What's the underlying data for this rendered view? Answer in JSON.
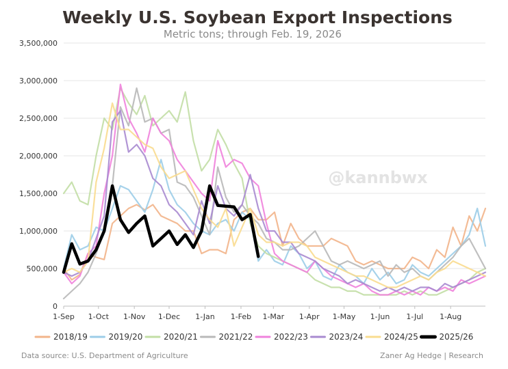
{
  "chart_data": {
    "type": "line",
    "title": "Weekly U.S. Soybean Export Inspections",
    "subtitle": "Metric tons; through Feb. 19, 2026",
    "xlabel": "",
    "ylabel": "",
    "x_tick_labels": [
      "1-Sep",
      "1-Oct",
      "1-Nov",
      "1-Dec",
      "1-Jan",
      "1-Feb",
      "1-Mar",
      "1-Apr",
      "1-May",
      "1-Jun",
      "1-Jul",
      "1-Aug"
    ],
    "y_tick_labels": [
      "0",
      "500,000",
      "1,000,000",
      "1,500,000",
      "2,000,000",
      "2,500,000",
      "3,000,000",
      "3,500,000"
    ],
    "ylim": [
      0,
      3500000
    ],
    "xlim_weeks": [
      0,
      52
    ],
    "grid": "horizontal",
    "legend_position": "bottom",
    "series": [
      {
        "name": "2018/19",
        "color": "#f2b48a",
        "width": 2.2,
        "values": [
          500,
          350,
          420,
          700,
          650,
          620,
          1100,
          1200,
          1300,
          1350,
          1280,
          1350,
          1200,
          1150,
          1100,
          1000,
          1000,
          700,
          750,
          750,
          700,
          1150,
          1250,
          1300,
          1150,
          1150,
          1250,
          800,
          1100,
          900,
          800,
          800,
          800,
          900,
          850,
          800,
          600,
          550,
          600,
          550,
          500,
          500,
          500,
          650,
          600,
          500,
          750,
          650,
          1050,
          800,
          1200,
          1000,
          1300
        ]
      },
      {
        "name": "2019/20",
        "color": "#9ccde8",
        "width": 2.2,
        "values": [
          500,
          950,
          750,
          800,
          1050,
          1000,
          1300,
          1600,
          1550,
          1400,
          1250,
          1550,
          1950,
          1550,
          1350,
          1250,
          1100,
          1000,
          950,
          1100,
          1150,
          1000,
          1250,
          1150,
          600,
          750,
          600,
          550,
          800,
          700,
          500,
          600,
          400,
          350,
          550,
          450,
          400,
          300,
          500,
          350,
          450,
          300,
          350,
          550,
          450,
          400,
          500,
          600,
          700,
          800,
          950,
          1300,
          800
        ]
      },
      {
        "name": "2020/21",
        "color": "#c2dea5",
        "width": 2.2,
        "values": [
          1500,
          1650,
          1400,
          1350,
          2000,
          2500,
          2350,
          2900,
          2700,
          2550,
          2800,
          2400,
          2500,
          2600,
          2450,
          2850,
          2200,
          1800,
          1950,
          2350,
          2150,
          1900,
          1700,
          1100,
          800,
          700,
          650,
          600,
          550,
          500,
          450,
          350,
          300,
          250,
          250,
          200,
          200,
          150,
          150,
          150,
          150,
          150,
          200,
          150,
          200,
          150,
          150,
          200,
          250,
          300,
          350,
          450,
          500
        ]
      },
      {
        "name": "2021/22",
        "color": "#b8b8b8",
        "width": 2.2,
        "values": [
          100,
          200,
          300,
          450,
          700,
          1000,
          1600,
          2650,
          2400,
          2900,
          2450,
          2500,
          2300,
          2350,
          1650,
          1600,
          1450,
          1200,
          950,
          1850,
          1450,
          1250,
          1350,
          1200,
          1100,
          900,
          850,
          750,
          750,
          800,
          900,
          1000,
          800,
          600,
          550,
          600,
          550,
          500,
          550,
          600,
          400,
          550,
          450,
          500,
          400,
          350,
          450,
          550,
          650,
          800,
          900,
          700,
          500
        ]
      },
      {
        "name": "2022/23",
        "color": "#ef82dc",
        "width": 2.2,
        "values": [
          450,
          300,
          400,
          700,
          800,
          1500,
          2000,
          2950,
          2500,
          2300,
          2050,
          2500,
          2300,
          2200,
          1950,
          1800,
          1650,
          1500,
          1400,
          2200,
          1850,
          1950,
          1900,
          1700,
          1600,
          1100,
          700,
          600,
          550,
          500,
          450,
          600,
          500,
          400,
          350,
          300,
          250,
          300,
          200,
          150,
          150,
          200,
          150,
          200,
          150,
          250,
          200,
          250,
          200,
          350,
          300,
          350,
          400
        ]
      },
      {
        "name": "2023/24",
        "color": "#a88ad0",
        "width": 2.2,
        "values": [
          450,
          400,
          450,
          600,
          900,
          1200,
          2450,
          2600,
          2050,
          2150,
          2000,
          1700,
          1600,
          1350,
          1250,
          1100,
          950,
          1400,
          1100,
          1600,
          1300,
          1200,
          1350,
          1750,
          1300,
          1000,
          1000,
          850,
          850,
          700,
          650,
          600,
          500,
          450,
          400,
          300,
          350,
          300,
          250,
          200,
          250,
          200,
          250,
          200,
          250,
          250,
          200,
          300,
          250,
          300,
          350,
          400,
          450
        ]
      },
      {
        "name": "2024/25",
        "color": "#f9dc8f",
        "width": 2.2,
        "values": [
          450,
          500,
          450,
          600,
          1650,
          2100,
          2700,
          2350,
          2350,
          2250,
          2150,
          2100,
          1850,
          1700,
          1750,
          1800,
          1550,
          1300,
          1150,
          1050,
          1300,
          800,
          1050,
          1300,
          950,
          850,
          850,
          800,
          850,
          850,
          800,
          650,
          600,
          550,
          500,
          450,
          400,
          400,
          350,
          300,
          250,
          250,
          300,
          350,
          400,
          350,
          450,
          500,
          600,
          550,
          500,
          450,
          400
        ]
      },
      {
        "name": "2025/26",
        "color": "#000000",
        "width": 4.5,
        "values": [
          450,
          830,
          560,
          600,
          750,
          1000,
          1600,
          1150,
          980,
          1100,
          1200,
          800,
          900,
          1000,
          820,
          950,
          780,
          1000,
          1600,
          1340,
          1330,
          1320,
          1150,
          1220,
          660
        ]
      }
    ]
  },
  "watermark": "@kannbwx",
  "footer": {
    "source": "Data source: U.S. Department of Agriculture",
    "credit": "Zaner Ag Hedge | Research"
  }
}
